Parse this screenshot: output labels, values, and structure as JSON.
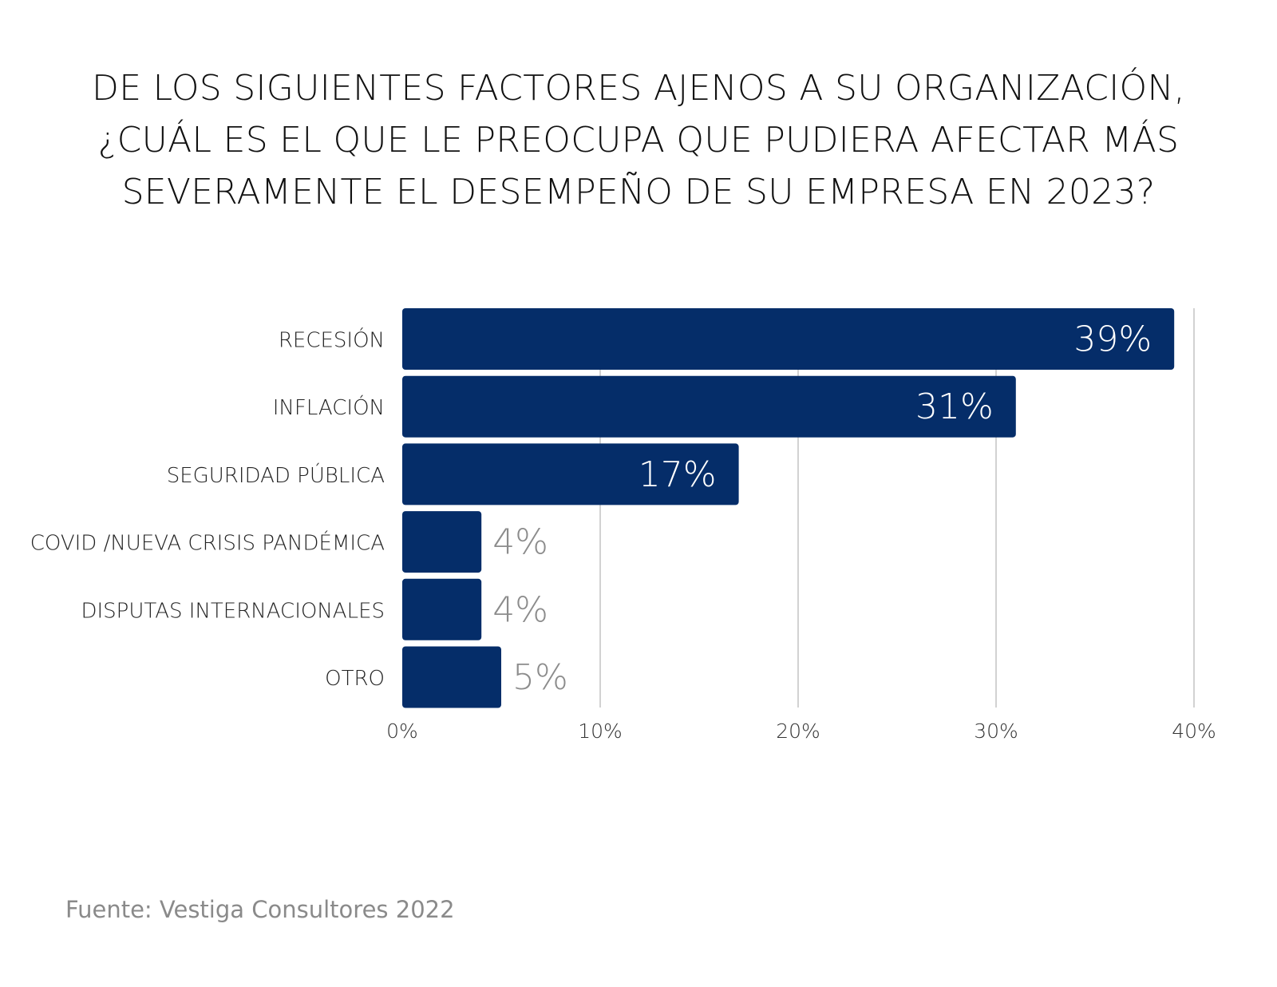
{
  "title_lines": [
    "DE LOS SIGUIENTES FACTORES AJENOS A SU ORGANIZACIÓN,",
    "¿CUÁL ES EL QUE LE PREOCUPA QUE PUDIERA AFECTAR MÁS",
    "SEVERAMENTE EL DESEMPEÑO DE SU EMPRESA EN 2023?"
  ],
  "source": "Fuente: Vestiga Consultores 2022",
  "colors": {
    "bar": "#052d69",
    "label_inside": "#ffffff",
    "label_outside": "#8c8c8c",
    "grid": "#c4c4c4",
    "category_text": "#222222",
    "tick_text": "#333333"
  },
  "chart_data": {
    "type": "bar",
    "orientation": "horizontal",
    "title": "DE LOS SIGUIENTES FACTORES AJENOS A SU ORGANIZACIÓN, ¿CUÁL ES EL QUE LE PREOCUPA QUE PUDIERA AFECTAR MÁS SEVERAMENTE EL DESEMPEÑO DE SU EMPRESA EN 2023?",
    "categories": [
      "RECESIÓN",
      "INFLACIÓN",
      "SEGURIDAD PÚBLICA",
      "COVID /NUEVA CRISIS PANDÉMICA",
      "DISPUTAS INTERNACIONALES",
      "OTRO"
    ],
    "values": [
      39,
      31,
      17,
      4,
      4,
      5
    ],
    "data_labels": [
      "39%",
      "31%",
      "17%",
      "4%",
      "4%",
      "5%"
    ],
    "xlim": [
      0,
      40
    ],
    "xticks": [
      0,
      10,
      20,
      30,
      40
    ],
    "xtick_labels": [
      "0%",
      "10%",
      "20%",
      "30%",
      "40%"
    ],
    "xlabel": "",
    "ylabel": "",
    "grid": "vertical"
  }
}
